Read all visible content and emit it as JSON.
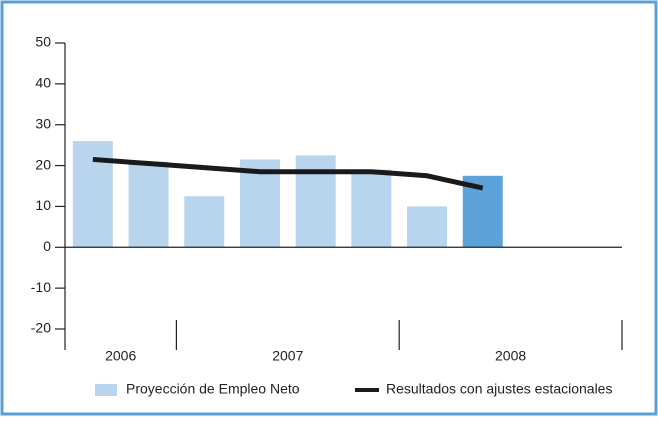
{
  "chart_data": {
    "type": "bar",
    "categories": [
      null,
      null,
      null,
      null,
      null,
      null,
      null,
      null,
      null,
      null
    ],
    "x_groups": [
      {
        "label": "2006",
        "span": 2
      },
      {
        "label": "2007",
        "span": 4
      },
      {
        "label": "2008",
        "span": 4
      }
    ],
    "series": [
      {
        "name": "Proyección de Empleo Neto",
        "type": "bar",
        "color": "#b9d4ed",
        "colors": [
          "#b9d4ed",
          "#b9d4ed",
          "#b9d4ed",
          "#b9d4ed",
          "#b9d4ed",
          "#b9d4ed",
          "#b9d4ed",
          "#5ba3d9",
          null,
          null
        ],
        "values": [
          26,
          21,
          12.5,
          21.5,
          22.5,
          19,
          10,
          17.5,
          null,
          null
        ]
      },
      {
        "name": "Resultados con ajustes estacionales",
        "type": "line",
        "color": "#1a1a1a",
        "values": [
          21.5,
          20.5,
          19.5,
          18.5,
          18.5,
          18.5,
          17.5,
          14.5,
          null,
          null
        ]
      }
    ],
    "ylim": [
      -20,
      50
    ],
    "yticks": [
      -20,
      -10,
      0,
      10,
      20,
      30,
      40,
      50
    ]
  }
}
